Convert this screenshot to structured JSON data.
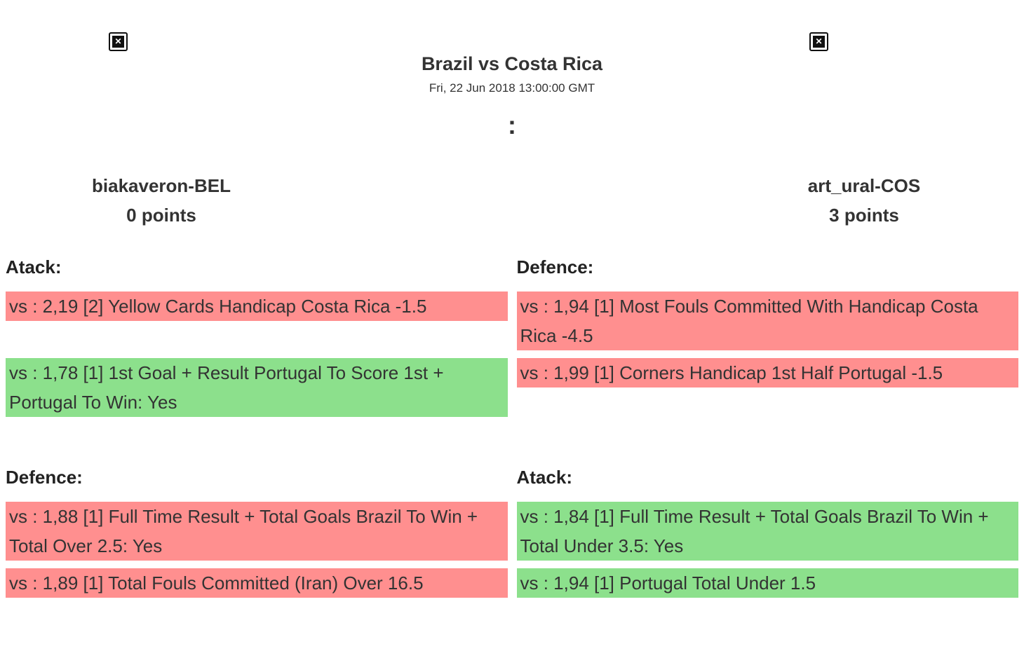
{
  "match": {
    "title": "Brazil vs Costa Rica",
    "datetime": "Fri, 22 Jun 2018 13:00:00 GMT",
    "score_separator": ":"
  },
  "players": {
    "left": {
      "name": "biakaveron-BEL",
      "points": "0 points"
    },
    "right": {
      "name": "art_ural-COS",
      "points": "3 points"
    }
  },
  "icons": {
    "broken_image_glyph": "✕"
  },
  "colors": {
    "win_bg": "#8ce08c",
    "loss_bg": "#ff8f8f",
    "text": "#333333"
  },
  "sections": [
    {
      "left": {
        "heading": "Atack:",
        "bets": [
          {
            "text": "vs : 2,19 [2] Yellow Cards Handicap Costa Rica -1.5",
            "status": "loss"
          },
          {
            "text": "vs : 1,78 [1] 1st Goal + Result Portugal To Score 1st + Portugal To Win: Yes",
            "status": "win"
          }
        ]
      },
      "right": {
        "heading": "Defence:",
        "bets": [
          {
            "text": "vs : 1,94 [1] Most Fouls Committed With Handicap Costa Rica -4.5",
            "status": "loss"
          },
          {
            "text": "vs : 1,99 [1] Corners Handicap 1st Half Portugal -1.5",
            "status": "loss"
          }
        ]
      }
    },
    {
      "left": {
        "heading": "Defence:",
        "bets": [
          {
            "text": "vs : 1,88 [1] Full Time Result + Total Goals Brazil To Win + Total Over 2.5: Yes",
            "status": "loss"
          },
          {
            "text": "vs : 1,89 [1] Total Fouls Committed (Iran) Over 16.5",
            "status": "loss"
          }
        ]
      },
      "right": {
        "heading": "Atack:",
        "bets": [
          {
            "text": "vs : 1,84 [1] Full Time Result + Total Goals Brazil To Win + Total Under 3.5: Yes",
            "status": "win"
          },
          {
            "text": "vs : 1,94 [1] Portugal Total Under 1.5",
            "status": "win"
          }
        ]
      }
    }
  ]
}
